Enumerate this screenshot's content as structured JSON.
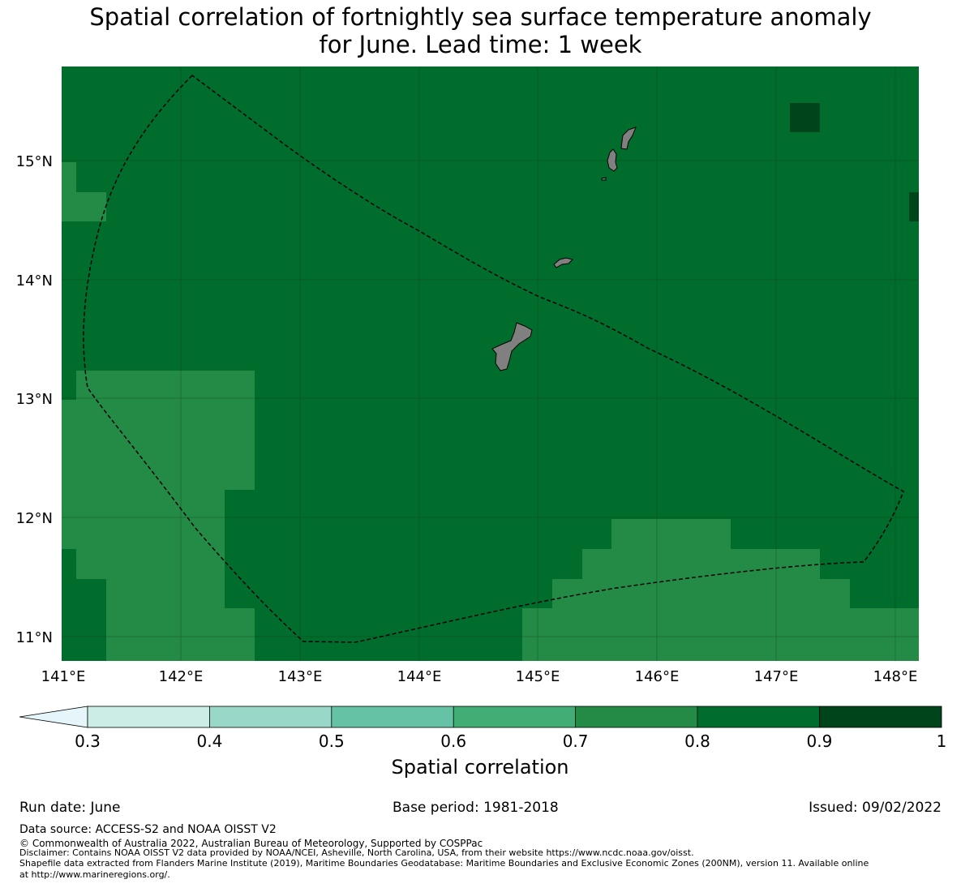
{
  "title": {
    "line1": "Spatial correlation of fortnightly sea surface temperature anomaly",
    "line2": "for June. Lead time: 1 week"
  },
  "map": {
    "x_ticks": [
      "141°E",
      "142°E",
      "143°E",
      "144°E",
      "145°E",
      "146°E",
      "147°E",
      "148°E"
    ],
    "y_ticks": [
      "15°N",
      "14°N",
      "13°N",
      "12°N",
      "11°N"
    ],
    "lon_range": [
      141.0,
      148.2
    ],
    "lat_range": [
      10.8,
      15.8
    ],
    "land_color": "#808080",
    "boundary_style": "dashed black line (EEZ)"
  },
  "colorbar": {
    "label": "Spatial correlation",
    "ticks": [
      "0.3",
      "0.4",
      "0.5",
      "0.6",
      "0.7",
      "0.8",
      "0.9",
      "1"
    ],
    "bins": [
      {
        "range": [
          0.3,
          0.4
        ],
        "color": "#ccece6"
      },
      {
        "range": [
          0.4,
          0.5
        ],
        "color": "#99d8c9"
      },
      {
        "range": [
          0.5,
          0.6
        ],
        "color": "#66c2a4"
      },
      {
        "range": [
          0.6,
          0.7
        ],
        "color": "#41ae76"
      },
      {
        "range": [
          0.7,
          0.8
        ],
        "color": "#238b45"
      },
      {
        "range": [
          0.8,
          0.9
        ],
        "color": "#006d2c"
      },
      {
        "range": [
          0.9,
          1.0
        ],
        "color": "#00441b"
      }
    ],
    "under_color": "#e5f5f9"
  },
  "footer": {
    "run_date": "Run date: June",
    "base_period": "Base period: 1981-2018",
    "issued": "Issued: 09/02/2022",
    "data_source": "Data source: ACCESS-S2 and NOAA OISST V2",
    "copyright": "© Commonwealth of Australia 2022, Australian Bureau of Meteorology, Supported by COSPPac",
    "disclaimer": "Disclaimer: Contains NOAA OISST V2 data provided by NOAA/NCEI, Asheville, North Carolina, USA, from their website https://www.ncdc.noaa.gov/oisst.",
    "shapefile_1": "Shapefile data extracted from Flanders Marine Institute (2019), Maritime Boundaries Geodatabase: Maritime Boundaries and Exclusive Economic Zones (200NM), version 11. Available online",
    "shapefile_2": "at http://www.marineregions.org/."
  }
}
